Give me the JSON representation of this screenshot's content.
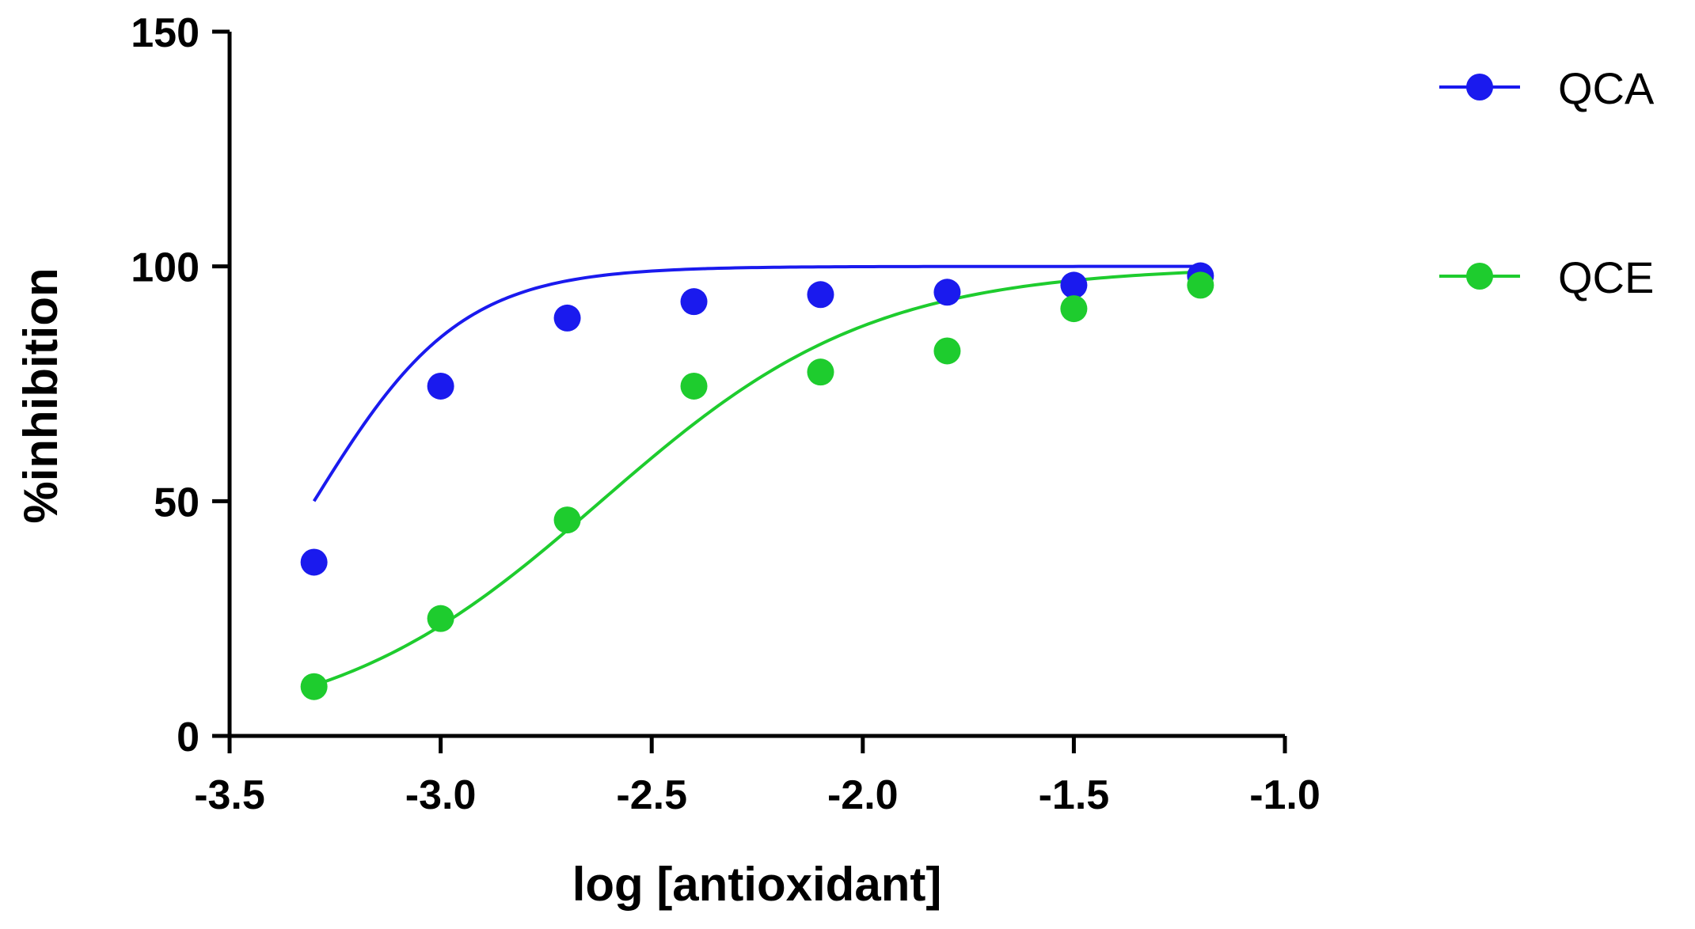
{
  "chart_data": {
    "type": "scatter",
    "title": "",
    "xlabel": "log [antioxidant]",
    "ylabel": "%inhibition",
    "xlim": [
      -3.5,
      -1.0
    ],
    "ylim": [
      0,
      150
    ],
    "xticks": [
      -3.5,
      -3.0,
      -2.5,
      -2.0,
      -1.5,
      -1.0
    ],
    "xtick_labels": [
      "-3.5",
      "-3.0",
      "-2.5",
      "-2.0",
      "-1.5",
      "-1.0"
    ],
    "yticks": [
      0,
      50,
      100,
      150
    ],
    "ytick_labels": [
      "0",
      "50",
      "100",
      "150"
    ],
    "grid": false,
    "legend_position": "top-right",
    "series": [
      {
        "name": "QCA",
        "color": "#1a1aee",
        "x": [
          -3.3,
          -3.0,
          -2.7,
          -2.4,
          -2.1,
          -1.8,
          -1.5,
          -1.2
        ],
        "y": [
          37,
          74.5,
          89,
          92.5,
          94,
          94.5,
          96,
          98
        ],
        "fit": {
          "bottom": 0,
          "top": 100,
          "logEC50": -3.3,
          "hill": 2.5
        }
      },
      {
        "name": "QCE",
        "color": "#1ecc2e",
        "x": [
          -3.3,
          -3.0,
          -2.7,
          -2.4,
          -2.1,
          -1.8,
          -1.5,
          -1.2
        ],
        "y": [
          10.5,
          25,
          46,
          74.5,
          77.5,
          82,
          91,
          96
        ],
        "fit": {
          "bottom": 0,
          "top": 100,
          "logEC50": -2.62,
          "hill": 1.35
        }
      }
    ]
  }
}
